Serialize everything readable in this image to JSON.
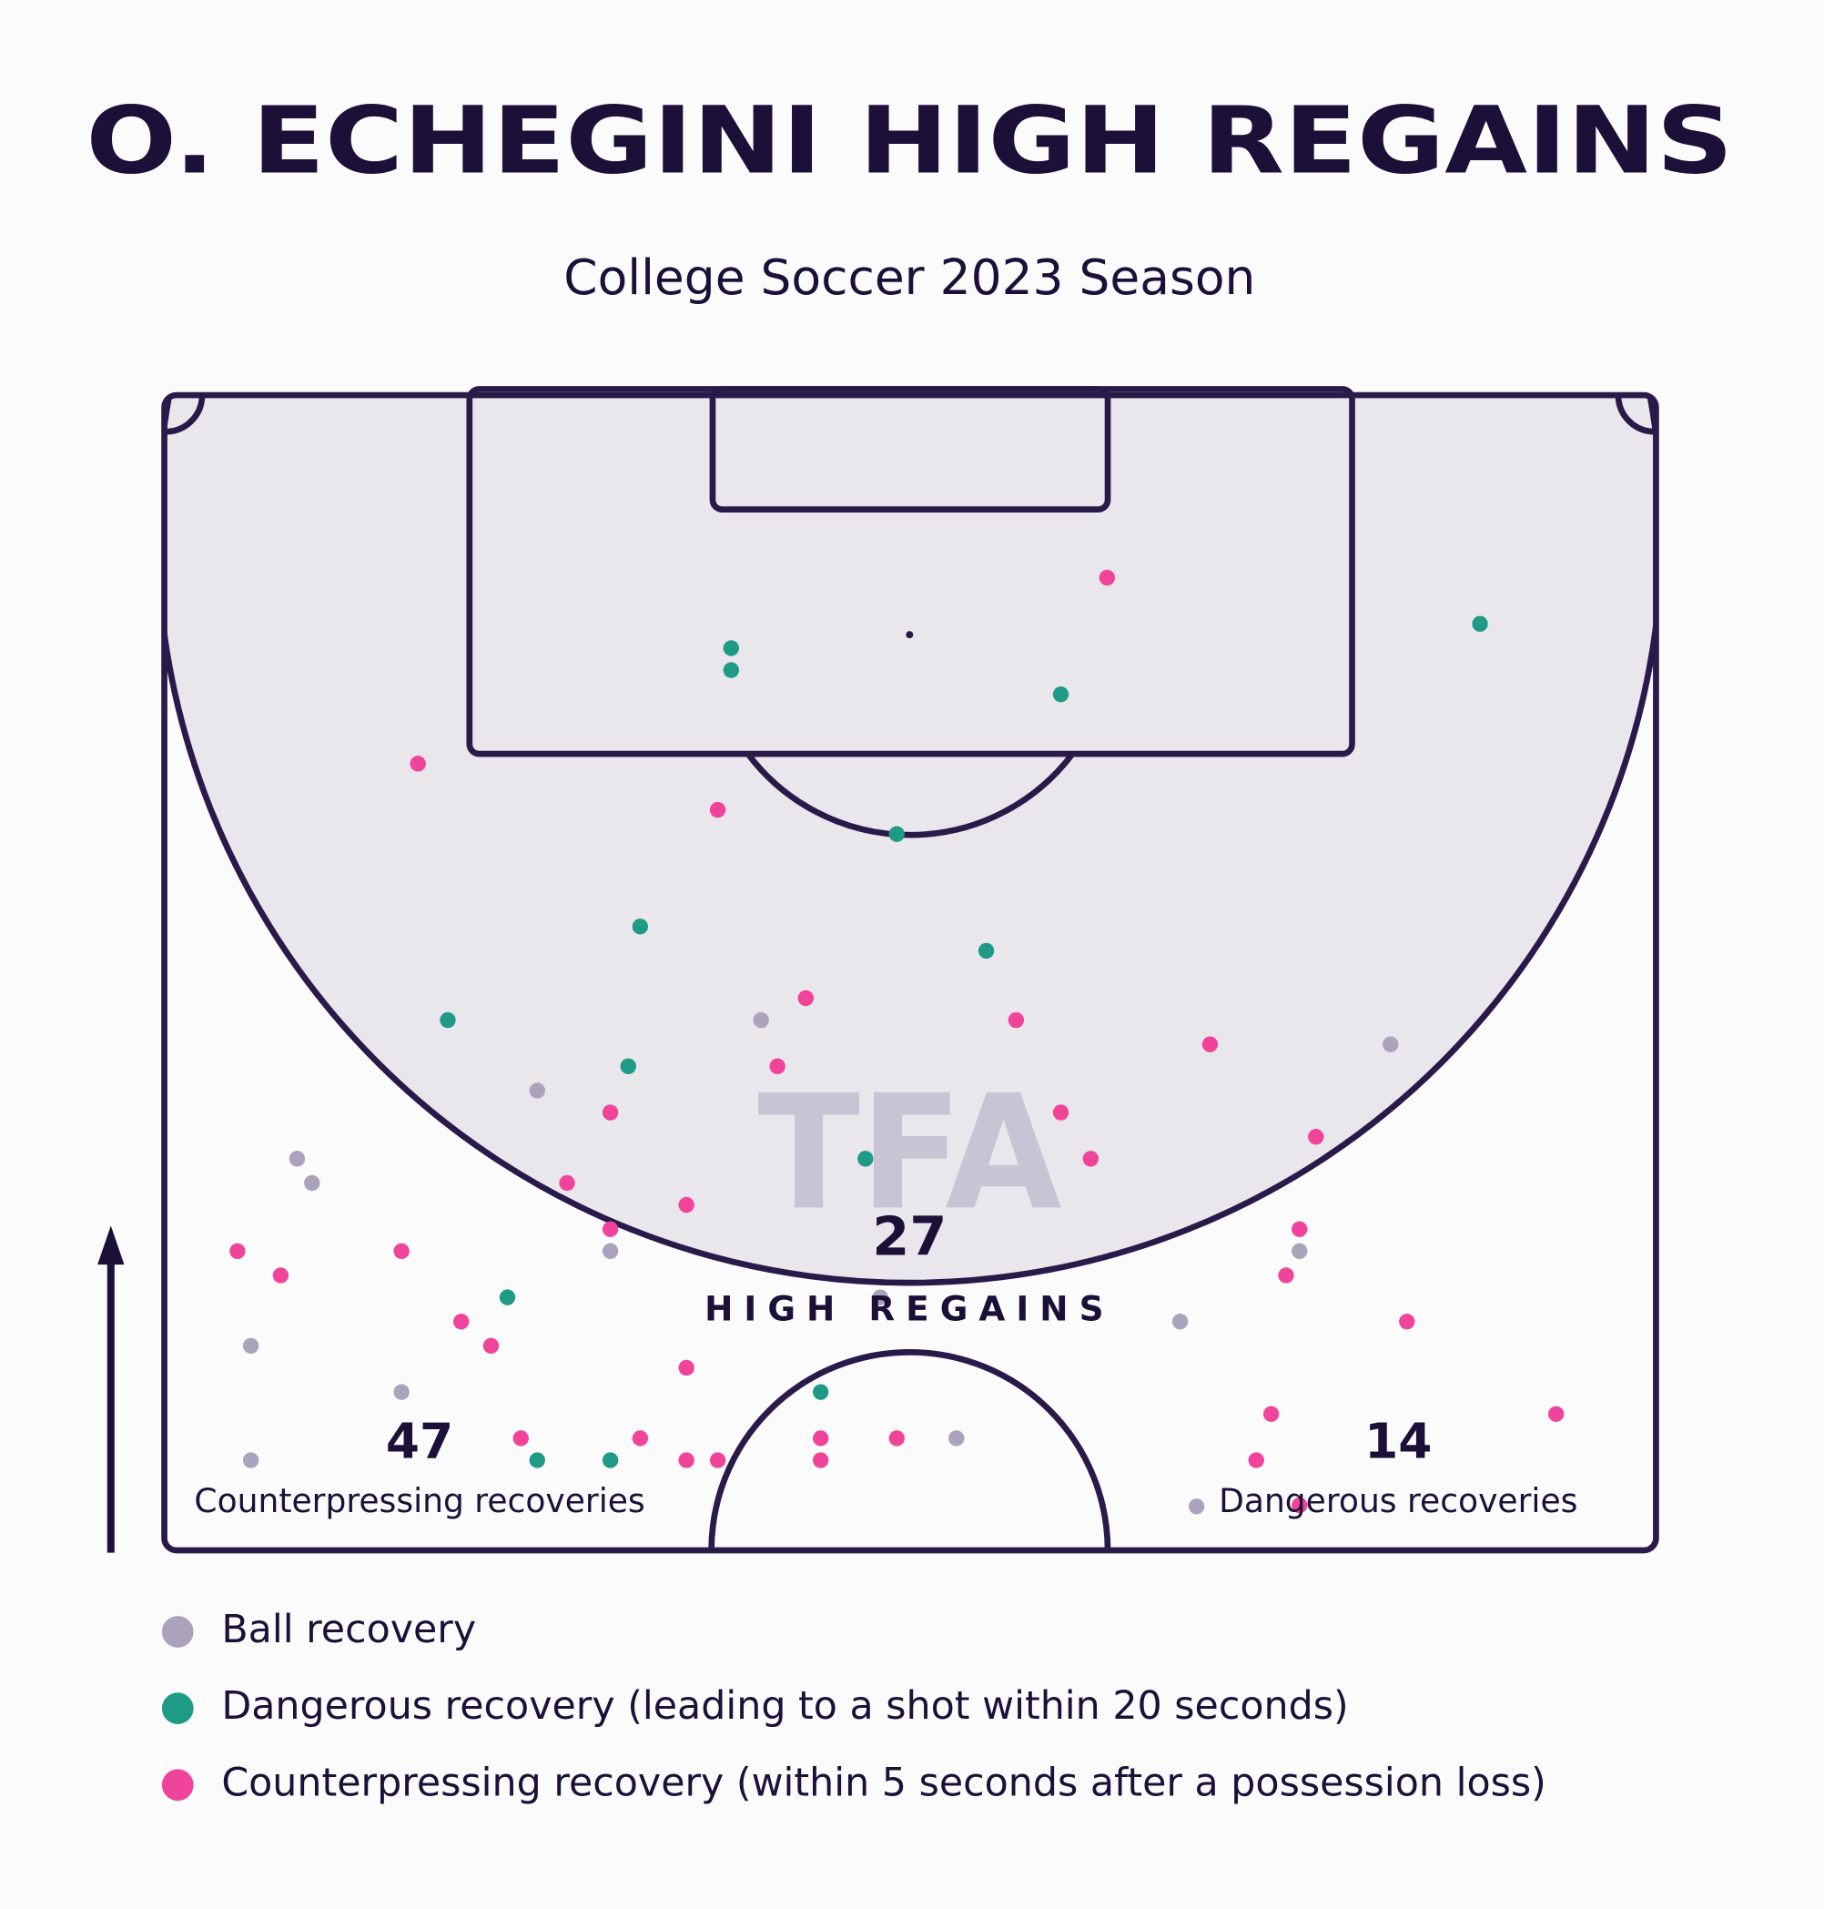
{
  "chart_data": {
    "type": "scatter",
    "title": "O. ECHEGINI HIGH REGAINS",
    "subtitle": "College Soccer 2023 Season",
    "watermark": "TFA",
    "xlim": [
      0,
      100
    ],
    "ylim": [
      0,
      100
    ],
    "stats": [
      {
        "value": 27,
        "label": "HIGH REGAINS"
      },
      {
        "value": 47,
        "label": "Counterpressing recoveries"
      },
      {
        "value": 14,
        "label": "Dangerous recoveries"
      }
    ],
    "series": [
      {
        "name": "Ball recovery",
        "color": "#aaa3bb",
        "x": [
          40.0,
          82.2,
          25.0,
          8.9,
          9.9,
          29.9,
          76.1,
          48.0,
          5.8,
          68.1,
          15.9,
          5.8,
          53.1,
          69.2
        ],
        "y": [
          45.9,
          43.8,
          39.8,
          33.9,
          31.8,
          25.9,
          25.9,
          21.9,
          17.7,
          19.8,
          13.7,
          7.8,
          9.7,
          3.8
        ]
      },
      {
        "name": "Dangerous recovery (leading to a shot within 20 seconds)",
        "color": "#1e9a86",
        "x": [
          88.2,
          38.0,
          38.0,
          60.1,
          49.1,
          31.9,
          55.1,
          19.0,
          31.1,
          47.0,
          23.0,
          44.0,
          25.0,
          29.9
        ],
        "y": [
          80.2,
          78.1,
          76.2,
          74.1,
          62.0,
          54.0,
          51.9,
          45.9,
          41.9,
          33.9,
          21.9,
          13.7,
          7.8,
          7.8
        ]
      },
      {
        "name": "Counterpressing recovery (within 5 seconds after a possession loss)",
        "color": "#f0449a",
        "x": [
          63.2,
          17.0,
          37.1,
          43.0,
          57.1,
          41.1,
          70.1,
          29.9,
          60.1,
          77.2,
          62.1,
          27.0,
          35.0,
          29.9,
          76.1,
          4.9,
          15.9,
          7.8,
          75.2,
          19.9,
          83.3,
          21.9,
          35.0,
          74.2,
          93.3,
          23.9,
          31.9,
          44.0,
          49.1,
          73.2,
          35.0,
          37.1,
          44.0,
          76.1
        ],
        "y": [
          84.2,
          68.1,
          64.1,
          47.8,
          45.9,
          41.9,
          43.8,
          37.9,
          37.9,
          35.8,
          33.9,
          31.8,
          29.9,
          27.8,
          27.8,
          25.9,
          25.9,
          23.8,
          23.8,
          19.8,
          19.8,
          17.7,
          15.8,
          11.8,
          11.8,
          9.7,
          9.7,
          9.7,
          9.7,
          7.8,
          7.8,
          7.8,
          7.8,
          3.9
        ]
      }
    ]
  }
}
